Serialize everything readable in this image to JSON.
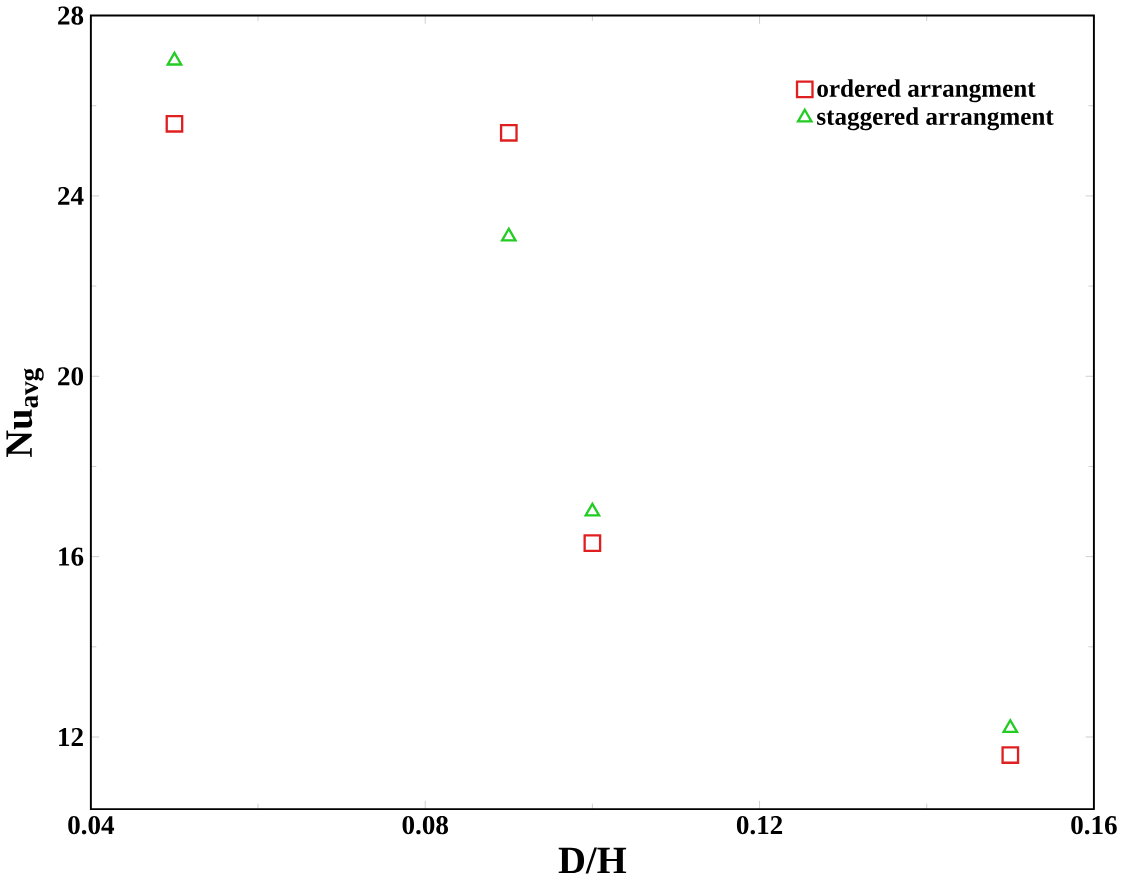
{
  "chart_data": {
    "type": "scatter",
    "xlabel": "D/H",
    "ylabel": "Nu$_{avg}$",
    "xlim": [
      0.04,
      0.16
    ],
    "xticks": [
      0.04,
      0.08,
      0.12,
      0.16
    ],
    "ylim": [
      10.4,
      28
    ],
    "yticks": [
      12,
      16,
      20,
      24,
      28
    ],
    "legend": "top right",
    "series": [
      {
        "name": "ordered arrangment",
        "color": "#e02020",
        "marker": "square",
        "x": [
          0.05,
          0.09,
          0.1,
          0.15
        ],
        "values": [
          25.6,
          25.4,
          16.3,
          11.6
        ]
      },
      {
        "name": "staggered arrangment",
        "color": "#22cc22",
        "marker": "triangle",
        "x": [
          0.05,
          0.09,
          0.1,
          0.15
        ],
        "values": [
          27.0,
          23.1,
          17.0,
          12.2
        ]
      }
    ]
  }
}
